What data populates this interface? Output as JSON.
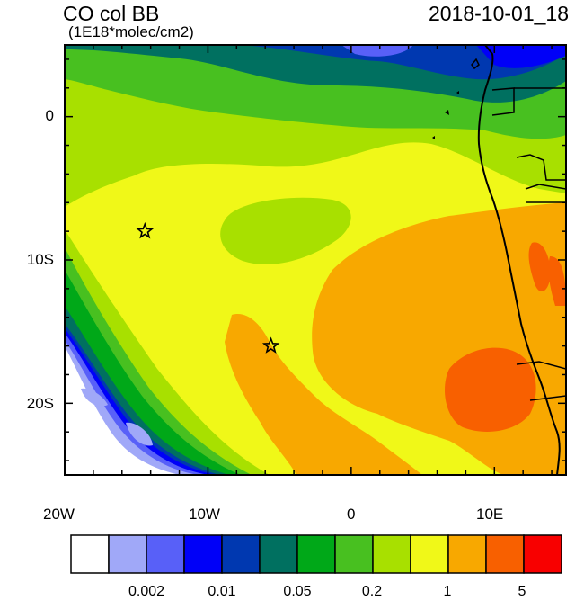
{
  "header": {
    "title": "CO col BB",
    "subtitle": "(1E18*molec/cm2)",
    "datetime": "2018-10-01_18"
  },
  "axes": {
    "lat_labels": [
      "0",
      "10S",
      "20S"
    ],
    "lon_labels": [
      "20W",
      "10W",
      "0",
      "10E"
    ]
  },
  "colorbar": {
    "colors": [
      "#ffffff",
      "#a0a8f8",
      "#5860f8",
      "#0000f8",
      "#0038b0",
      "#007060",
      "#00a818",
      "#48c020",
      "#a8e000",
      "#f0f818",
      "#f8a800",
      "#f86000",
      "#f80000"
    ],
    "labels": [
      "0.002",
      "0.01",
      "0.05",
      "0.2",
      "1",
      "5"
    ]
  },
  "markers": [
    {
      "name": "site-star-north",
      "lon": -14.4,
      "lat": -8.0
    },
    {
      "name": "site-star-south",
      "lon": -5.6,
      "lat": -16.0
    }
  ]
}
